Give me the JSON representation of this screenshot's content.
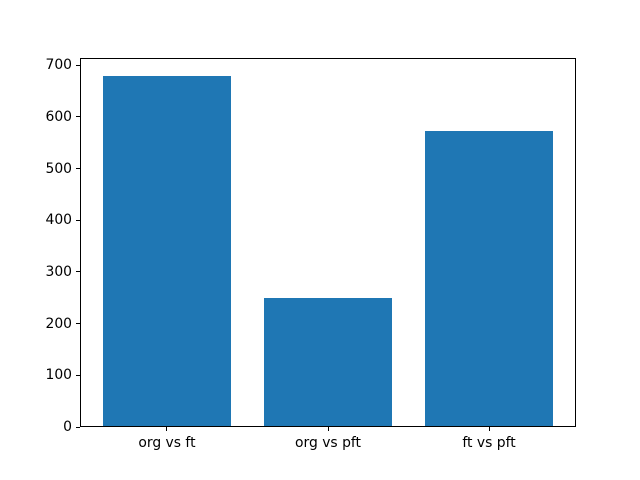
{
  "chart_data": {
    "type": "bar",
    "categories": [
      "org vs ft",
      "org vs pft",
      "ft vs pft"
    ],
    "values": [
      680,
      250,
      573
    ],
    "yticks": [
      0,
      100,
      200,
      300,
      400,
      500,
      600,
      700
    ],
    "ylim": [
      0,
      714
    ],
    "xlim": [
      -0.54,
      2.54
    ],
    "bar_width": 0.8,
    "bar_color": "#1f77b4",
    "spine_color": "#000000",
    "background_color": "#ffffff",
    "grid": false,
    "legend": null,
    "title": "",
    "xlabel": "",
    "ylabel": ""
  }
}
